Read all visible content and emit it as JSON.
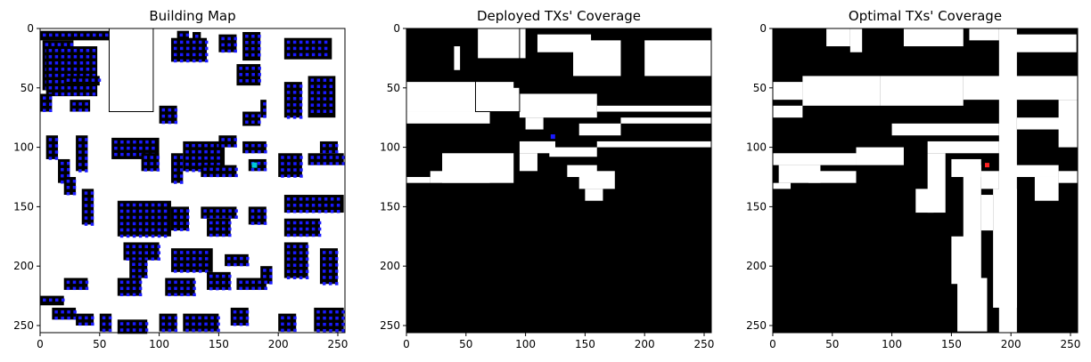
{
  "chart_data": [
    {
      "type": "heatmap",
      "title": "Building Map",
      "xlim": [
        0,
        256
      ],
      "ylim": [
        256,
        0
      ],
      "xticks": [
        0,
        50,
        100,
        150,
        200,
        250
      ],
      "yticks": [
        0,
        50,
        100,
        150,
        200,
        250
      ],
      "background_color": "#ffffff",
      "fill_color": "#000000",
      "marker_color": "#1a1aff",
      "highlight_color": "#00c8d8",
      "highlight_marker": [
        180,
        115
      ],
      "regions": [
        [
          2,
          28,
          10,
          42
        ],
        [
          5,
          48,
          15,
          42
        ],
        [
          0,
          90,
          2,
          8
        ],
        [
          115,
          125,
          2,
          20
        ],
        [
          128,
          135,
          3,
          12
        ],
        [
          110,
          140,
          8,
          20
        ],
        [
          150,
          165,
          5,
          15
        ],
        [
          170,
          185,
          3,
          24
        ],
        [
          205,
          245,
          8,
          18
        ],
        [
          165,
          185,
          30,
          18
        ],
        [
          20,
          50,
          40,
          8
        ],
        [
          0,
          10,
          55,
          15
        ],
        [
          25,
          42,
          60,
          10
        ],
        [
          225,
          248,
          40,
          35
        ],
        [
          205,
          220,
          45,
          30
        ],
        [
          100,
          115,
          65,
          15
        ],
        [
          185,
          190,
          60,
          15
        ],
        [
          170,
          185,
          70,
          12
        ],
        [
          5,
          15,
          90,
          20
        ],
        [
          15,
          25,
          110,
          20
        ],
        [
          20,
          30,
          125,
          15
        ],
        [
          30,
          40,
          90,
          30
        ],
        [
          35,
          45,
          135,
          30
        ],
        [
          60,
          100,
          92,
          18
        ],
        [
          85,
          100,
          105,
          15
        ],
        [
          120,
          155,
          95,
          25
        ],
        [
          150,
          165,
          90,
          10
        ],
        [
          170,
          190,
          95,
          10
        ],
        [
          110,
          120,
          105,
          25
        ],
        [
          135,
          165,
          115,
          10
        ],
        [
          175,
          190,
          110,
          10
        ],
        [
          200,
          220,
          105,
          20
        ],
        [
          225,
          255,
          105,
          10
        ],
        [
          235,
          250,
          95,
          10
        ],
        [
          65,
          110,
          145,
          30
        ],
        [
          110,
          125,
          150,
          20
        ],
        [
          135,
          165,
          150,
          10
        ],
        [
          175,
          190,
          150,
          15
        ],
        [
          205,
          255,
          140,
          15
        ],
        [
          205,
          235,
          160,
          15
        ],
        [
          140,
          160,
          160,
          15
        ],
        [
          70,
          100,
          180,
          15
        ],
        [
          110,
          145,
          185,
          20
        ],
        [
          155,
          175,
          190,
          10
        ],
        [
          185,
          195,
          200,
          15
        ],
        [
          205,
          225,
          180,
          30
        ],
        [
          235,
          250,
          185,
          30
        ],
        [
          75,
          90,
          195,
          15
        ],
        [
          20,
          40,
          210,
          10
        ],
        [
          0,
          20,
          225,
          8
        ],
        [
          65,
          85,
          210,
          15
        ],
        [
          105,
          130,
          210,
          15
        ],
        [
          140,
          160,
          205,
          15
        ],
        [
          165,
          190,
          210,
          10
        ],
        [
          10,
          30,
          235,
          10
        ],
        [
          30,
          45,
          240,
          10
        ],
        [
          50,
          60,
          240,
          15
        ],
        [
          65,
          90,
          245,
          12
        ],
        [
          100,
          115,
          240,
          15
        ],
        [
          120,
          150,
          240,
          15
        ],
        [
          160,
          175,
          235,
          15
        ],
        [
          200,
          215,
          240,
          15
        ],
        [
          230,
          255,
          235,
          20
        ]
      ]
    },
    {
      "type": "heatmap",
      "title": "Deployed TXs' Coverage",
      "xlim": [
        0,
        256
      ],
      "ylim": [
        256,
        0
      ],
      "xticks": [
        0,
        50,
        100,
        150,
        200,
        250
      ],
      "yticks": [
        0,
        50,
        100,
        150,
        200,
        250
      ],
      "background_color": "#000000",
      "fill_color": "#ffffff",
      "marker_color": "#1a1aff",
      "marker": [
        123,
        91
      ],
      "regions": [
        [
          60,
          100,
          0,
          25
        ],
        [
          40,
          45,
          15,
          20
        ],
        [
          110,
          155,
          5,
          15
        ],
        [
          140,
          180,
          10,
          30
        ],
        [
          200,
          256,
          10,
          30
        ],
        [
          0,
          90,
          45,
          25
        ],
        [
          60,
          95,
          50,
          20
        ],
        [
          95,
          160,
          55,
          20
        ],
        [
          160,
          256,
          65,
          5
        ],
        [
          180,
          256,
          75,
          5
        ],
        [
          0,
          70,
          70,
          10
        ],
        [
          100,
          115,
          75,
          10
        ],
        [
          145,
          180,
          80,
          10
        ],
        [
          95,
          125,
          95,
          10
        ],
        [
          120,
          160,
          100,
          8
        ],
        [
          160,
          256,
          95,
          5
        ],
        [
          30,
          90,
          105,
          25
        ],
        [
          20,
          70,
          120,
          10
        ],
        [
          135,
          160,
          115,
          10
        ],
        [
          145,
          175,
          120,
          15
        ],
        [
          150,
          165,
          135,
          10
        ],
        [
          95,
          110,
          105,
          15
        ],
        [
          0,
          20,
          125,
          5
        ]
      ]
    },
    {
      "type": "heatmap",
      "title": "Optimal TXs' Coverage",
      "xlim": [
        0,
        256
      ],
      "ylim": [
        256,
        0
      ],
      "xticks": [
        0,
        50,
        100,
        150,
        200,
        250
      ],
      "yticks": [
        0,
        50,
        100,
        150,
        200,
        250
      ],
      "background_color": "#000000",
      "fill_color": "#ffffff",
      "marker_color": "#ff2222",
      "marker": [
        180,
        115
      ],
      "regions": [
        [
          45,
          65,
          0,
          15
        ],
        [
          65,
          75,
          0,
          20
        ],
        [
          110,
          160,
          0,
          15
        ],
        [
          165,
          190,
          0,
          10
        ],
        [
          190,
          205,
          0,
          256
        ],
        [
          200,
          255,
          5,
          15
        ],
        [
          0,
          25,
          45,
          15
        ],
        [
          25,
          90,
          40,
          25
        ],
        [
          90,
          160,
          40,
          25
        ],
        [
          160,
          256,
          40,
          20
        ],
        [
          240,
          256,
          60,
          40
        ],
        [
          0,
          25,
          65,
          10
        ],
        [
          100,
          190,
          80,
          10
        ],
        [
          205,
          256,
          75,
          10
        ],
        [
          0,
          70,
          105,
          10
        ],
        [
          70,
          110,
          100,
          15
        ],
        [
          130,
          190,
          95,
          10
        ],
        [
          5,
          40,
          115,
          15
        ],
        [
          30,
          70,
          120,
          10
        ],
        [
          130,
          145,
          105,
          50
        ],
        [
          150,
          175,
          110,
          15
        ],
        [
          175,
          190,
          120,
          15
        ],
        [
          195,
          240,
          115,
          10
        ],
        [
          240,
          256,
          120,
          10
        ],
        [
          160,
          175,
          115,
          100
        ],
        [
          175,
          185,
          140,
          30
        ],
        [
          150,
          165,
          175,
          40
        ],
        [
          155,
          180,
          210,
          45
        ],
        [
          185,
          205,
          135,
          100
        ],
        [
          220,
          240,
          125,
          20
        ],
        [
          0,
          15,
          130,
          5
        ],
        [
          120,
          135,
          135,
          20
        ]
      ]
    }
  ]
}
